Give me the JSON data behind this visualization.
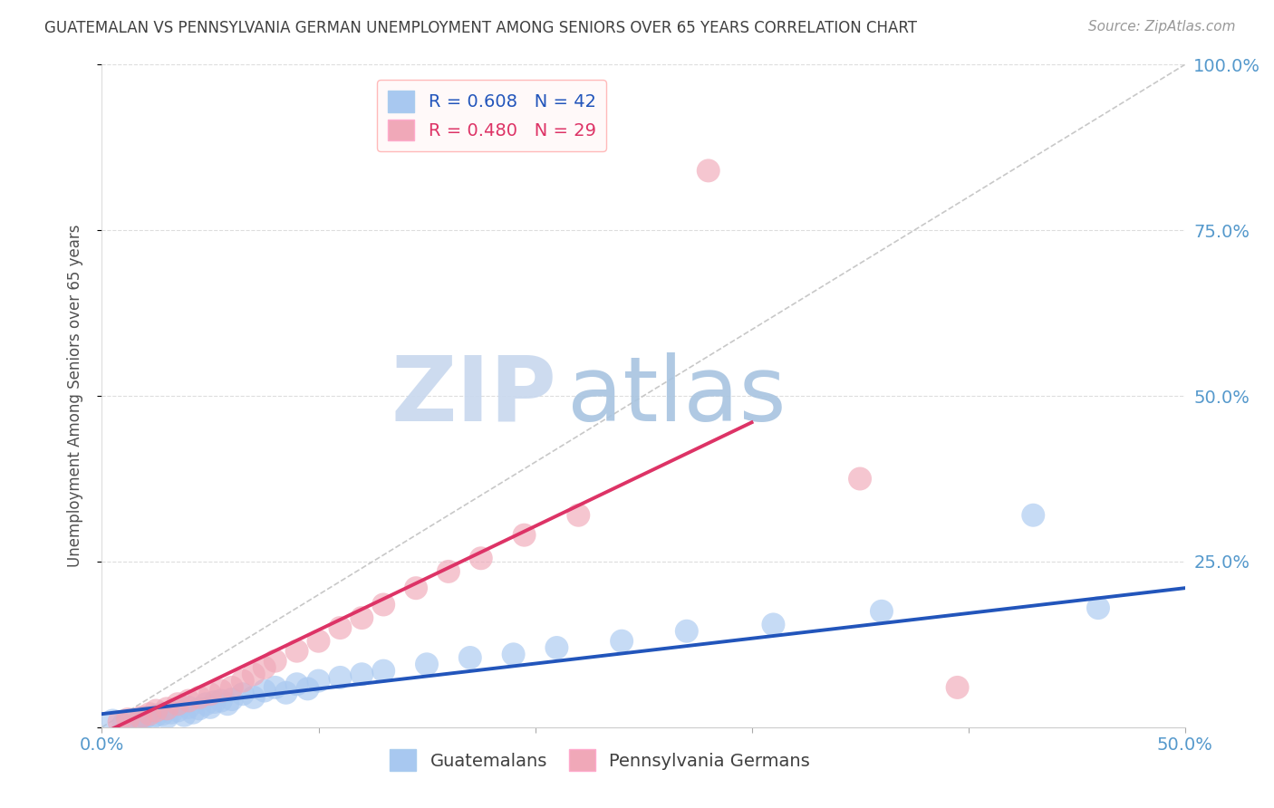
{
  "title": "GUATEMALAN VS PENNSYLVANIA GERMAN UNEMPLOYMENT AMONG SENIORS OVER 65 YEARS CORRELATION CHART",
  "source": "Source: ZipAtlas.com",
  "ylabel": "Unemployment Among Seniors over 65 years",
  "xlim": [
    0.0,
    0.5
  ],
  "ylim": [
    0.0,
    1.0
  ],
  "xtick_vals": [
    0.0,
    0.1,
    0.2,
    0.3,
    0.4,
    0.5
  ],
  "xtick_labels": [
    "0.0%",
    "",
    "",
    "",
    "",
    "50.0%"
  ],
  "ytick_vals": [
    0.0,
    0.25,
    0.5,
    0.75,
    1.0
  ],
  "ytick_labels": [
    "",
    "25.0%",
    "50.0%",
    "75.0%",
    "100.0%"
  ],
  "blue_R": 0.608,
  "blue_N": 42,
  "pink_R": 0.48,
  "pink_N": 29,
  "blue_color": "#a8c8f0",
  "pink_color": "#f0a8b8",
  "blue_line_color": "#2255bb",
  "pink_line_color": "#dd3366",
  "ref_line_color": "#c8c8c8",
  "background_color": "#ffffff",
  "grid_color": "#dddddd",
  "title_color": "#404040",
  "axis_label_color": "#505050",
  "tick_color": "#5599cc",
  "watermark_color": "#dce8f5",
  "legend_box_color": "#fff8f8",
  "blue_x": [
    0.005,
    0.01,
    0.015,
    0.018,
    0.02,
    0.022,
    0.025,
    0.028,
    0.03,
    0.032,
    0.035,
    0.038,
    0.04,
    0.042,
    0.045,
    0.048,
    0.05,
    0.052,
    0.055,
    0.058,
    0.06,
    0.065,
    0.07,
    0.075,
    0.08,
    0.085,
    0.09,
    0.095,
    0.1,
    0.11,
    0.12,
    0.13,
    0.15,
    0.17,
    0.19,
    0.21,
    0.24,
    0.27,
    0.31,
    0.36,
    0.43,
    0.46
  ],
  "blue_y": [
    0.01,
    0.005,
    0.008,
    0.012,
    0.015,
    0.01,
    0.018,
    0.02,
    0.015,
    0.022,
    0.025,
    0.018,
    0.03,
    0.022,
    0.028,
    0.035,
    0.03,
    0.038,
    0.04,
    0.035,
    0.042,
    0.05,
    0.045,
    0.055,
    0.06,
    0.052,
    0.065,
    0.058,
    0.07,
    0.075,
    0.08,
    0.085,
    0.095,
    0.105,
    0.11,
    0.12,
    0.13,
    0.145,
    0.155,
    0.175,
    0.32,
    0.18
  ],
  "pink_x": [
    0.008,
    0.012,
    0.018,
    0.022,
    0.025,
    0.03,
    0.035,
    0.04,
    0.045,
    0.05,
    0.055,
    0.06,
    0.065,
    0.07,
    0.075,
    0.08,
    0.09,
    0.1,
    0.11,
    0.12,
    0.13,
    0.145,
    0.16,
    0.175,
    0.195,
    0.22,
    0.28,
    0.35,
    0.395
  ],
  "pink_y": [
    0.008,
    0.012,
    0.015,
    0.02,
    0.025,
    0.028,
    0.035,
    0.04,
    0.045,
    0.05,
    0.055,
    0.06,
    0.07,
    0.08,
    0.09,
    0.1,
    0.115,
    0.13,
    0.15,
    0.165,
    0.185,
    0.21,
    0.235,
    0.255,
    0.29,
    0.32,
    0.84,
    0.375,
    0.06
  ],
  "blue_trend_x": [
    0.0,
    0.5
  ],
  "blue_trend_y": [
    0.02,
    0.21
  ],
  "pink_trend_x": [
    0.0,
    0.3
  ],
  "pink_trend_y": [
    -0.01,
    0.46
  ]
}
